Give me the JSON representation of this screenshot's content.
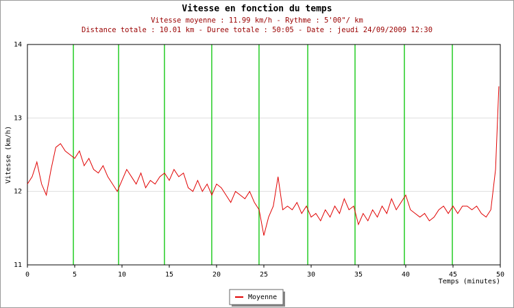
{
  "chart_data": {
    "type": "line",
    "title": "Vitesse en fonction du temps",
    "subtitle_lines": [
      "Vitesse moyenne : 11.99 km/h - Rythme : 5'00\"/ km",
      "Distance totale : 10.01 km - Duree totale : 50:05 - Date : jeudi 24/09/2009 12:30"
    ],
    "x_label": "Temps (minutes)",
    "y_label": "Vitesse (km/h)",
    "x": [
      0,
      0.5,
      1,
      1.5,
      2,
      2.5,
      3,
      3.5,
      4,
      4.5,
      5,
      5.5,
      6,
      6.5,
      7,
      7.5,
      8,
      8.5,
      9,
      9.5,
      10,
      10.5,
      11,
      11.5,
      12,
      12.5,
      13,
      13.5,
      14,
      14.5,
      15,
      15.5,
      16,
      16.5,
      17,
      17.5,
      18,
      18.5,
      19,
      19.5,
      20,
      20.5,
      21,
      21.5,
      22,
      22.5,
      23,
      23.5,
      24,
      24.5,
      25,
      25.5,
      26,
      26.5,
      27,
      27.5,
      28,
      28.5,
      29,
      29.5,
      30,
      30.5,
      31,
      31.5,
      32,
      32.5,
      33,
      33.5,
      34,
      34.5,
      35,
      35.5,
      36,
      36.5,
      37,
      37.5,
      38,
      38.5,
      39,
      39.5,
      40,
      40.5,
      41,
      41.5,
      42,
      42.5,
      43,
      43.5,
      44,
      44.5,
      45,
      45.5,
      46,
      46.5,
      47,
      47.5,
      48,
      48.5,
      49,
      49.5,
      49.85
    ],
    "series": [
      {
        "name": "Moyenne",
        "color": "#e00000",
        "values": [
          12.1,
          12.2,
          12.4,
          12.1,
          11.95,
          12.3,
          12.6,
          12.65,
          12.55,
          12.5,
          12.45,
          12.55,
          12.35,
          12.45,
          12.3,
          12.25,
          12.35,
          12.2,
          12.1,
          12.0,
          12.15,
          12.3,
          12.2,
          12.1,
          12.25,
          12.05,
          12.15,
          12.1,
          12.2,
          12.25,
          12.15,
          12.3,
          12.2,
          12.25,
          12.05,
          12.0,
          12.15,
          12.0,
          12.1,
          11.95,
          12.1,
          12.05,
          11.95,
          11.85,
          12.0,
          11.95,
          11.9,
          12.0,
          11.85,
          11.75,
          11.4,
          11.65,
          11.8,
          12.2,
          11.75,
          11.8,
          11.75,
          11.85,
          11.7,
          11.8,
          11.65,
          11.7,
          11.6,
          11.75,
          11.65,
          11.8,
          11.7,
          11.9,
          11.75,
          11.8,
          11.55,
          11.7,
          11.6,
          11.75,
          11.65,
          11.8,
          11.7,
          11.9,
          11.75,
          11.85,
          11.95,
          11.75,
          11.7,
          11.65,
          11.7,
          11.6,
          11.65,
          11.75,
          11.8,
          11.7,
          11.8,
          11.7,
          11.8,
          11.8,
          11.75,
          11.8,
          11.7,
          11.65,
          11.75,
          12.3,
          13.43
        ]
      }
    ],
    "km_markers": {
      "color": "#22cc22",
      "x": [
        4.86,
        9.64,
        14.49,
        19.49,
        24.49,
        29.64,
        34.64,
        39.86,
        44.93
      ]
    },
    "xlim": [
      0,
      50
    ],
    "xticks": [
      0,
      5,
      10,
      15,
      20,
      25,
      30,
      35,
      40,
      45,
      50
    ],
    "ylim": [
      11,
      14
    ],
    "yticks": [
      11,
      12,
      13,
      14
    ],
    "grid": true
  }
}
